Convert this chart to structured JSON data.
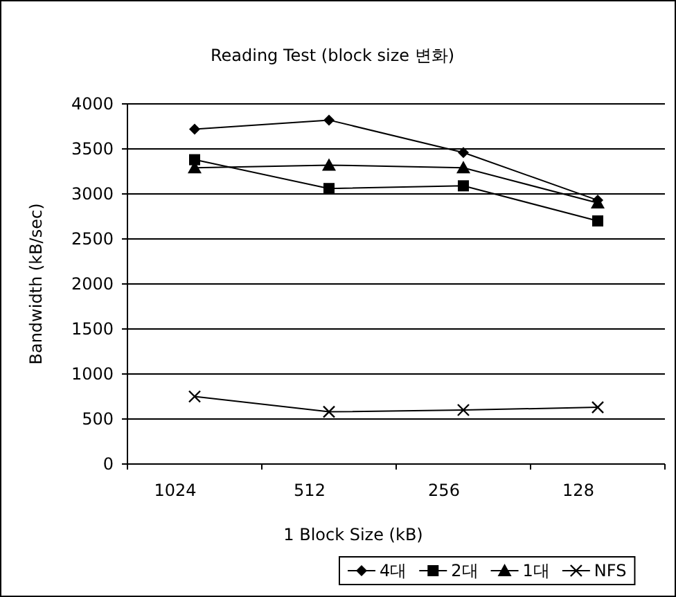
{
  "chart_data": {
    "type": "line",
    "title": "Reading Test (block size 변화)",
    "xlabel": "1 Block Size (kB)",
    "ylabel": "Bandwidth (kB/sec)",
    "categories": [
      "1024",
      "512",
      "256",
      "128"
    ],
    "series": [
      {
        "name": "4대",
        "color": "#000000",
        "marker": "diamond",
        "values": [
          3720,
          3820,
          3460,
          2930
        ]
      },
      {
        "name": "2대",
        "color": "#000000",
        "marker": "square",
        "values": [
          3380,
          3060,
          3090,
          2700
        ]
      },
      {
        "name": "1대",
        "color": "#000000",
        "marker": "triangle",
        "values": [
          3290,
          3320,
          3290,
          2900
        ]
      },
      {
        "name": "NFS",
        "color": "#000000",
        "marker": "cross",
        "values": [
          750,
          580,
          600,
          630
        ]
      }
    ],
    "ylim": [
      0,
      4000
    ],
    "yticks": [
      0,
      500,
      1000,
      1500,
      2000,
      2500,
      3000,
      3500,
      4000
    ],
    "grid": "y",
    "legend": "bottom",
    "line_style": "solid"
  }
}
